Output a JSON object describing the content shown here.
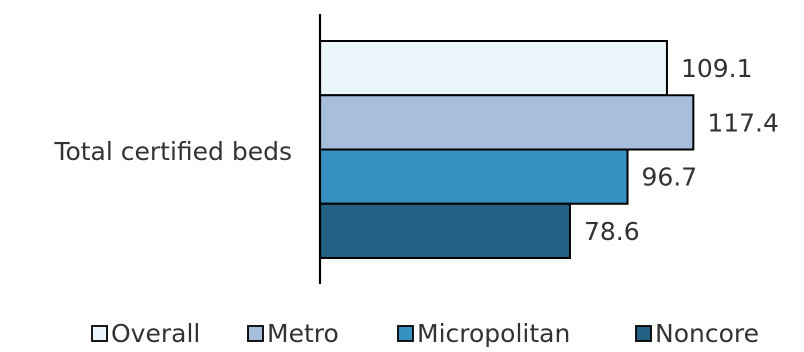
{
  "chart_data": {
    "type": "bar",
    "orientation": "horizontal",
    "categories": [
      "Total certified beds"
    ],
    "series": [
      {
        "name": "Overall",
        "values": [
          109.1
        ],
        "color": "#EAF6F9"
      },
      {
        "name": "Metro",
        "values": [
          117.4
        ],
        "color": "#A8BEDD"
      },
      {
        "name": "Micropolitan",
        "values": [
          96.7
        ],
        "color": "#3790C2"
      },
      {
        "name": "Noncore",
        "values": [
          78.6
        ],
        "color": "#246083"
      }
    ],
    "data_labels": [
      "109.1",
      "117.4",
      "96.7",
      "78.6"
    ],
    "xlim": [
      0,
      130
    ],
    "grid": false,
    "legend_position": "bottom",
    "title": "",
    "xlabel": "",
    "ylabel": ""
  }
}
